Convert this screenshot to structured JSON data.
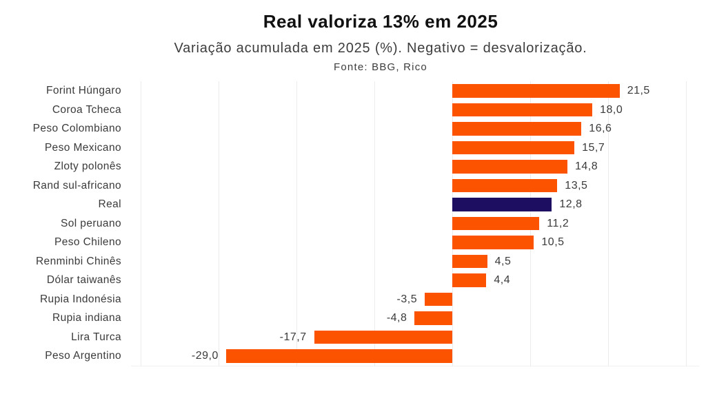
{
  "chart_data": {
    "type": "bar",
    "orientation": "horizontal",
    "title": "Real valoriza 13% em 2025",
    "subtitle": "Variação acumulada em 2025 (%). Negativo = desvalorização.",
    "source": "Fonte: BBG, Rico",
    "categories": [
      "Forint Húngaro",
      "Coroa Tcheca",
      "Peso Colombiano",
      "Peso Mexicano",
      "Zloty polonês",
      "Rand sul-africano",
      "Real",
      "Sol peruano",
      "Peso Chileno",
      "Renminbi Chinês",
      "Dólar taiwanês",
      "Rupia Indonésia",
      "Rupia indiana",
      "Lira Turca",
      "Peso Argentino"
    ],
    "values": [
      21.5,
      18.0,
      16.6,
      15.7,
      14.8,
      13.5,
      12.8,
      11.2,
      10.5,
      4.5,
      4.4,
      -3.5,
      -4.8,
      -17.7,
      -29.0
    ],
    "value_labels": [
      "21,5",
      "18,0",
      "16,6",
      "15,7",
      "14,8",
      "13,5",
      "12,8",
      "11,2",
      "10,5",
      "4,5",
      "4,4",
      "-3,5",
      "-4,8",
      "-17,7",
      "-29,0"
    ],
    "highlight_category": "Real",
    "highlight_index": 6,
    "colors": {
      "bar": "#FB5300",
      "highlight": "#1D0E62",
      "gridline": "#ECECEC",
      "title_text": "#111111",
      "label_text": "#3A3A3A"
    },
    "xlim": [
      -41.2,
      31.7
    ],
    "gridline_values": [
      -40,
      -30,
      -20,
      -10,
      0,
      10,
      20,
      30
    ],
    "xlabel": "",
    "ylabel": "",
    "grid": "vertical",
    "legend": "none",
    "decimal_separator": ","
  }
}
